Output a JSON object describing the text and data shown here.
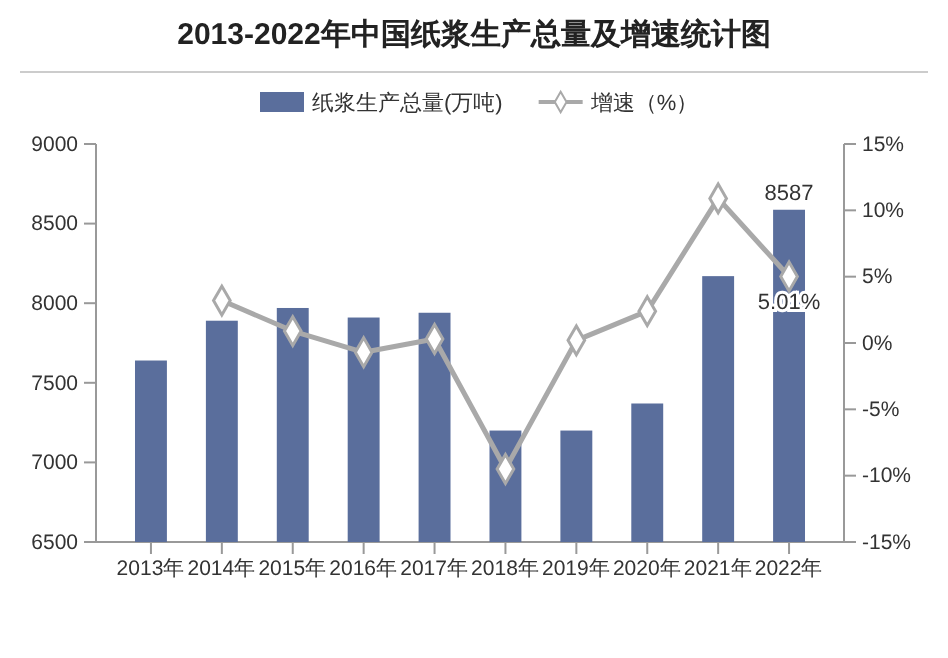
{
  "chart_data": {
    "type": "bar",
    "title": "2013-2022年中国纸浆生产总量及增速统计图",
    "categories": [
      "2013年",
      "2014年",
      "2015年",
      "2016年",
      "2017年",
      "2018年",
      "2019年",
      "2020年",
      "2021年",
      "2022年"
    ],
    "series": [
      {
        "name": "纸浆生产总量(万吨)",
        "color": "#5a6e9c",
        "values": [
          7640,
          7890,
          7970,
          7910,
          7940,
          7200,
          7200,
          7370,
          8170,
          8587
        ],
        "value_labels": [
          null,
          null,
          null,
          null,
          null,
          null,
          null,
          null,
          null,
          "8587"
        ]
      },
      {
        "name": "增速（%）",
        "type": "line",
        "axis": "y2",
        "color": "#a9a9a9",
        "marker": "diamond",
        "values": [
          null,
          3.2,
          0.9,
          -0.7,
          0.3,
          -9.5,
          0.2,
          2.4,
          10.9,
          5.01
        ],
        "value_labels": [
          null,
          null,
          null,
          null,
          null,
          null,
          null,
          null,
          null,
          "5.01%"
        ]
      }
    ],
    "ylim": [
      6500,
      9000
    ],
    "yticks": [
      6500,
      7000,
      7500,
      8000,
      8500,
      9000
    ],
    "y2lim": [
      -15,
      15
    ],
    "y2ticks": [
      {
        "value": -15,
        "label": "-15%"
      },
      {
        "value": -10,
        "label": "-10%"
      },
      {
        "value": -5,
        "label": "-5%"
      },
      {
        "value": 0,
        "label": "0%"
      },
      {
        "value": 5,
        "label": "5%"
      },
      {
        "value": 10,
        "label": "10%"
      },
      {
        "value": 15,
        "label": "15%"
      }
    ],
    "legend": "top",
    "grid": false
  }
}
